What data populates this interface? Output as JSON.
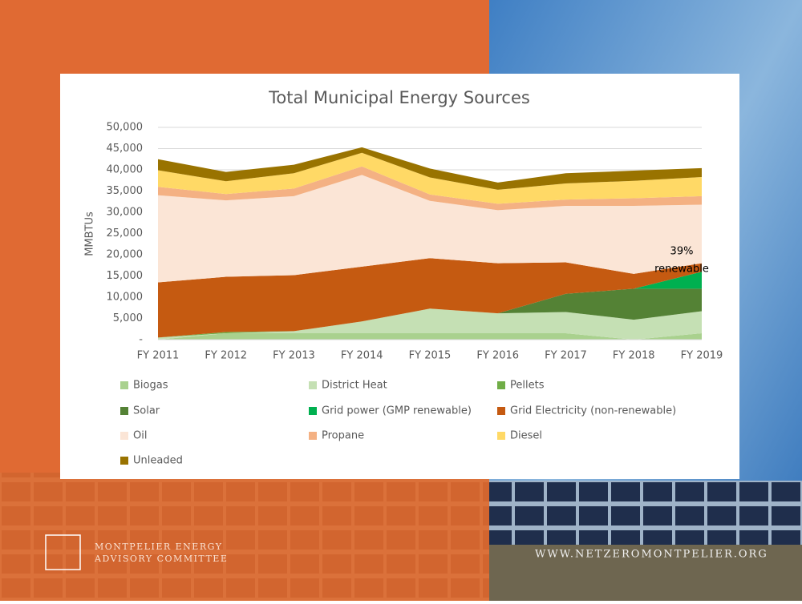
{
  "chart_data": {
    "type": "area",
    "stacked": true,
    "title": "Total Municipal Energy Sources",
    "y_label": "MMBTUs",
    "categories": [
      "FY 2011",
      "FY 2012",
      "FY 2013",
      "FY 2014",
      "FY 2015",
      "FY 2016",
      "FY 2017",
      "FY 2018",
      "FY 2019"
    ],
    "series": [
      {
        "name": "Biogas",
        "color": "#a9d18e",
        "values": [
          0,
          1500,
          1500,
          1500,
          1500,
          1500,
          1500,
          0,
          1500
        ]
      },
      {
        "name": "District Heat",
        "color": "#c5e0b4",
        "values": [
          500,
          0,
          500,
          2800,
          5800,
          4700,
          5000,
          4700,
          5200
        ]
      },
      {
        "name": "Pellets",
        "color": "#70ad47",
        "values": [
          0,
          300,
          0,
          0,
          0,
          0,
          0,
          0,
          0
        ]
      },
      {
        "name": "Solar",
        "color": "#548235",
        "values": [
          0,
          0,
          0,
          0,
          0,
          0,
          4300,
          7300,
          5300
        ]
      },
      {
        "name": "Grid power (GMP renewable)",
        "color": "#00b050",
        "values": [
          0,
          0,
          0,
          0,
          0,
          0,
          0,
          0,
          4000
        ]
      },
      {
        "name": "Grid Electricity (non-renewable)",
        "color": "#c55a11",
        "values": [
          13000,
          13000,
          13200,
          12900,
          11900,
          11800,
          7400,
          3500,
          2000
        ]
      },
      {
        "name": "Oil",
        "color": "#fbe5d6",
        "values": [
          20500,
          18000,
          18600,
          21600,
          13500,
          12500,
          13300,
          16000,
          13800
        ]
      },
      {
        "name": "Propane",
        "color": "#f4b183",
        "values": [
          2000,
          1500,
          1800,
          2000,
          1500,
          1500,
          1500,
          1800,
          2000
        ]
      },
      {
        "name": "Diesel",
        "color": "#ffd966",
        "values": [
          3900,
          3000,
          3600,
          3200,
          4000,
          3300,
          3800,
          4100,
          4500
        ]
      },
      {
        "name": "Unleaded",
        "color": "#997300",
        "values": [
          2600,
          2200,
          2000,
          1300,
          2100,
          1700,
          2400,
          2400,
          2100
        ]
      }
    ],
    "ylim": [
      0,
      50000
    ],
    "yticks": [
      {
        "value": 0,
        "label": "-"
      },
      {
        "value": 5000,
        "label": "5,000"
      },
      {
        "value": 10000,
        "label": "10,000"
      },
      {
        "value": 15000,
        "label": "15,000"
      },
      {
        "value": 20000,
        "label": "20,000"
      },
      {
        "value": 25000,
        "label": "25,000"
      },
      {
        "value": 30000,
        "label": "30,000"
      },
      {
        "value": 35000,
        "label": "35,000"
      },
      {
        "value": 40000,
        "label": "40,000"
      },
      {
        "value": 45000,
        "label": "45,000"
      },
      {
        "value": 50000,
        "label": "50,000"
      }
    ],
    "grid": true,
    "legend": "bottom",
    "annotation": [
      "39%",
      "renewable"
    ]
  },
  "footer": {
    "org": [
      "MONTPELIER ENERGY",
      "ADVISORY COMMITTEE"
    ],
    "url": "WWW.NETZEROMONTPELIER.ORG"
  }
}
